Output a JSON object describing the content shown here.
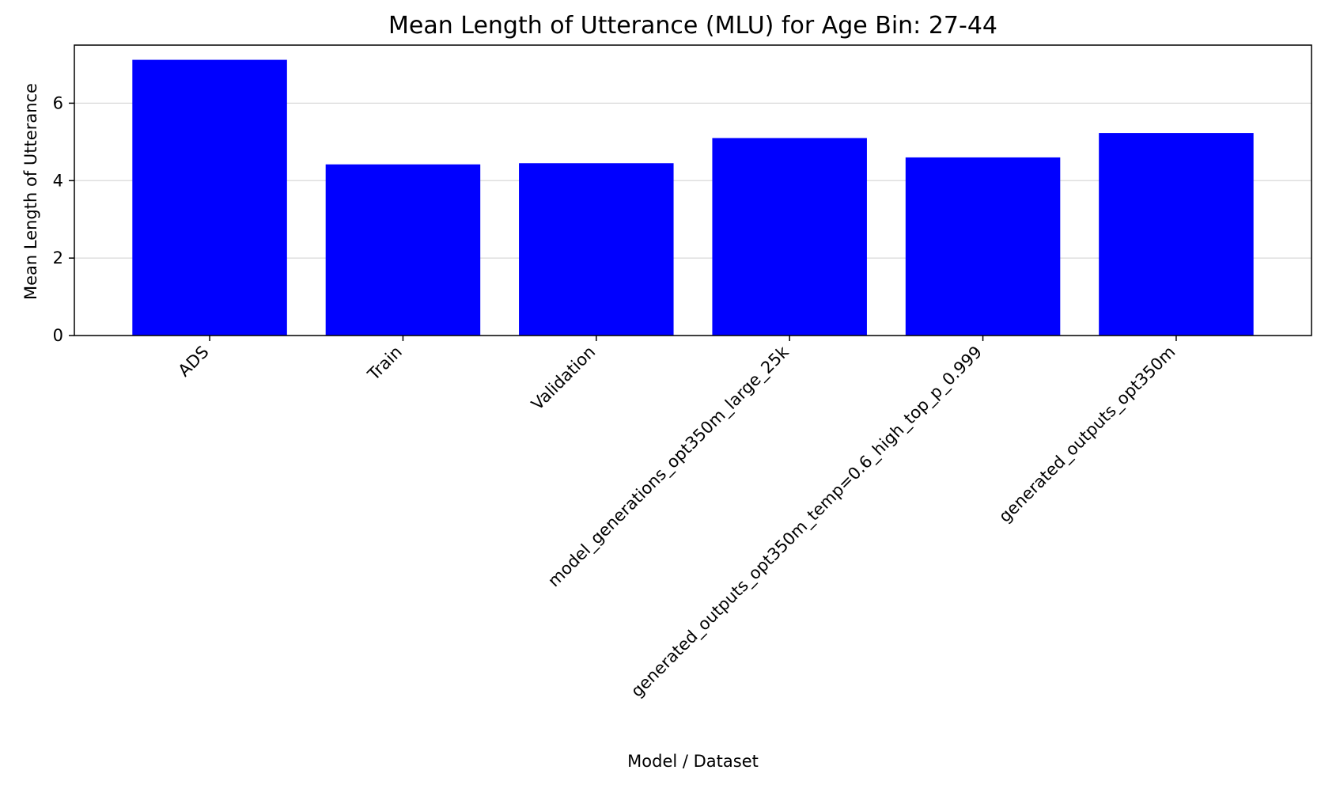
{
  "chart_data": {
    "type": "bar",
    "title": "Mean Length of Utterance (MLU) for Age Bin: 27-44",
    "xlabel": "Model / Dataset",
    "ylabel": "Mean Length of Utterance",
    "categories": [
      "ADS",
      "Train",
      "Validation",
      "model_generations_opt350m_large_25k",
      "generated_outputs_opt350m_temp=0.6_high_top_p_0.999",
      "generated_outputs_opt350m"
    ],
    "values": [
      7.12,
      4.42,
      4.45,
      5.1,
      4.6,
      5.23
    ],
    "ylim": [
      0,
      7.5
    ],
    "yticks": [
      0,
      2,
      4,
      6
    ],
    "grid": "horizontal",
    "colors": {
      "bar": "#0000ff",
      "grid": "#d9d9d9",
      "axis": "#000000"
    }
  }
}
